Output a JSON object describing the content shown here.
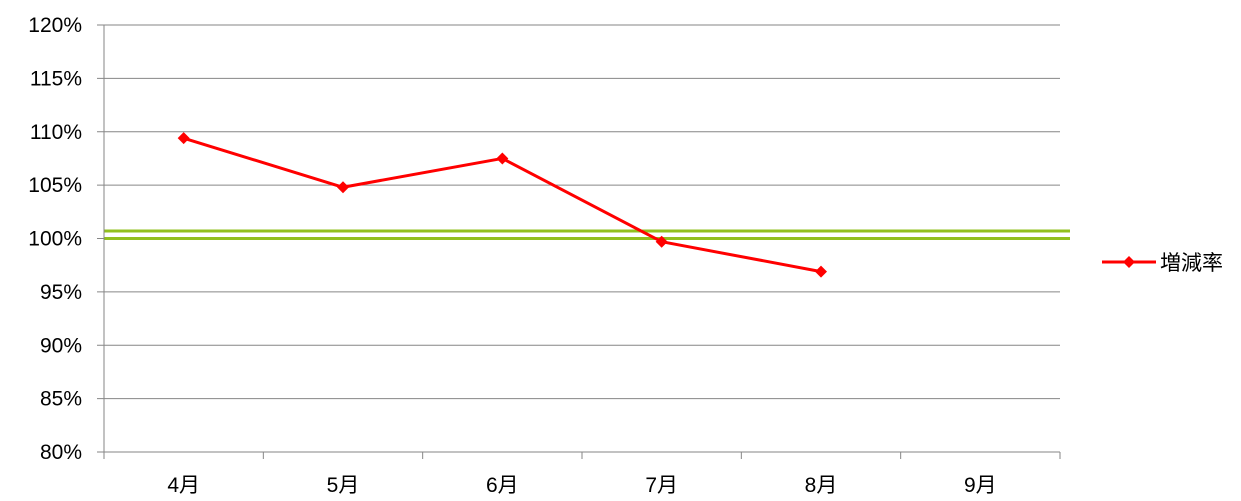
{
  "chart_data": {
    "type": "line",
    "categories": [
      "4月",
      "5月",
      "6月",
      "7月",
      "8月",
      "9月"
    ],
    "series": [
      {
        "name": "増減率",
        "values": [
          109.4,
          104.8,
          107.5,
          99.7,
          96.9,
          null
        ],
        "color": "#ff0000",
        "marker": "diamond"
      }
    ],
    "reference_lines": [
      {
        "value": 100.0,
        "color": "#92c01f"
      },
      {
        "value": 100.7,
        "color": "#92c01f"
      }
    ],
    "y_ticks": [
      "80%",
      "85%",
      "90%",
      "95%",
      "100%",
      "105%",
      "110%",
      "115%",
      "120%"
    ],
    "ylim": [
      80,
      120
    ],
    "y_step": 5,
    "grid": true,
    "legend_position": "right",
    "axis_color": "#868686",
    "grid_color": "#868686"
  }
}
